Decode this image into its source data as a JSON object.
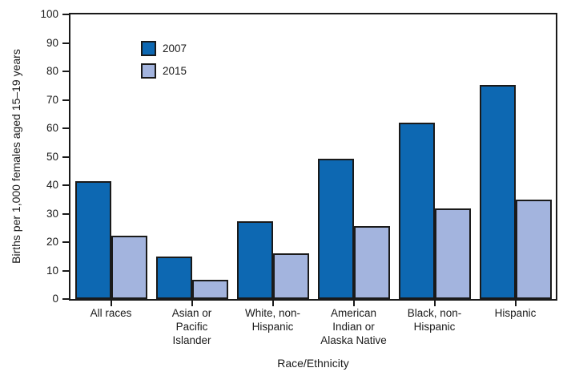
{
  "chart_data": {
    "type": "bar",
    "title": "",
    "xlabel": "Race/Ethnicity",
    "ylabel": "Births per 1,000 females aged 15–19 years",
    "ylim": [
      0,
      100
    ],
    "ytick_step": 10,
    "grid": false,
    "legend_position": "top-left-inside",
    "frame": "full-box",
    "categories": [
      "All races",
      "Asian or\nPacific\nIslander",
      "White, non-\nHispanic",
      "American\nIndian or\nAlaska Native",
      "Black, non-\nHispanic",
      "Hispanic"
    ],
    "series": [
      {
        "name": "2007",
        "color": "#0d68b2",
        "values": [
          41.5,
          14.8,
          27.2,
          49.4,
          62.0,
          75.3
        ]
      },
      {
        "name": "2015",
        "color": "#a3b4de",
        "values": [
          22.3,
          6.9,
          16.0,
          25.7,
          31.8,
          34.9
        ]
      }
    ]
  },
  "colors": {
    "axis": "#1a1a1a",
    "background": "#ffffff",
    "bar_border": "#1a1a1a",
    "text": "#1a1a1a"
  }
}
